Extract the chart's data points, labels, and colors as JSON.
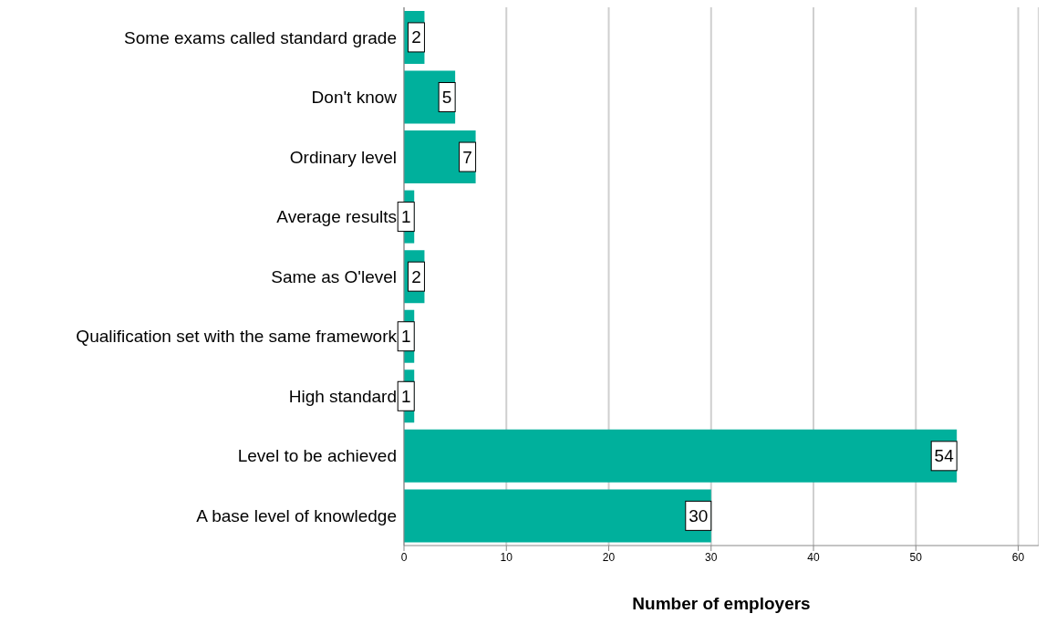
{
  "chart_data": {
    "type": "bar",
    "orientation": "horizontal",
    "xlabel": "Number of employers",
    "categories": [
      "Some exams called standard grade",
      "Don't know",
      "Ordinary level",
      "Average results",
      "Same as O'level",
      "Qualification set with the same framework",
      "High standard",
      "Level to be achieved",
      "A base level of knowledge"
    ],
    "values": [
      2,
      5,
      7,
      1,
      2,
      1,
      1,
      54,
      30
    ],
    "color": "#00b09c",
    "xlim": [
      0,
      62
    ],
    "xticks": [
      0,
      10,
      20,
      30,
      40,
      50,
      60
    ],
    "grid": "x",
    "data_labels": true
  }
}
